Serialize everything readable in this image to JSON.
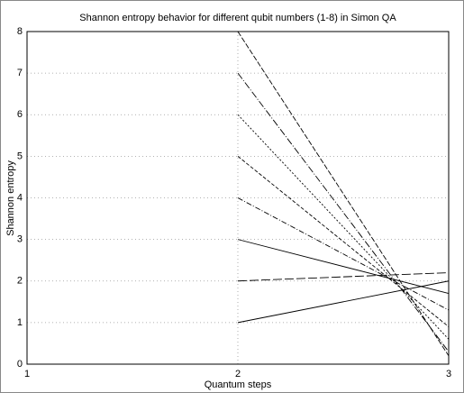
{
  "chart_data": {
    "type": "line",
    "title": "Shannon entropy behavior for different qubit numbers (1-8) in Simon QA",
    "x_label": "Quantum steps",
    "y_label": "Shannon entropy",
    "x": [
      1,
      2,
      3
    ],
    "series": [
      {
        "color": "#000000",
        "values": [
          null,
          1,
          2.0
        ]
      },
      {
        "color": "#000000",
        "values": [
          null,
          2,
          2.2
        ]
      },
      {
        "color": "#000000",
        "values": [
          null,
          3,
          1.7
        ]
      },
      {
        "color": "#000000",
        "values": [
          null,
          4,
          1.3
        ]
      },
      {
        "color": "#000000",
        "values": [
          null,
          5,
          0.9
        ]
      },
      {
        "color": "#000000",
        "values": [
          null,
          6,
          0.6
        ]
      },
      {
        "color": "#000000",
        "values": [
          null,
          7,
          0.3
        ]
      },
      {
        "color": "#000000",
        "values": [
          null,
          8,
          0.2
        ]
      }
    ],
    "xlim": [
      1,
      3
    ],
    "ylim": [
      0,
      8
    ],
    "xticks": [
      1,
      2,
      3
    ],
    "yticks": [
      0,
      1,
      2,
      3,
      4,
      5,
      6,
      7,
      8
    ],
    "grid": true
  }
}
